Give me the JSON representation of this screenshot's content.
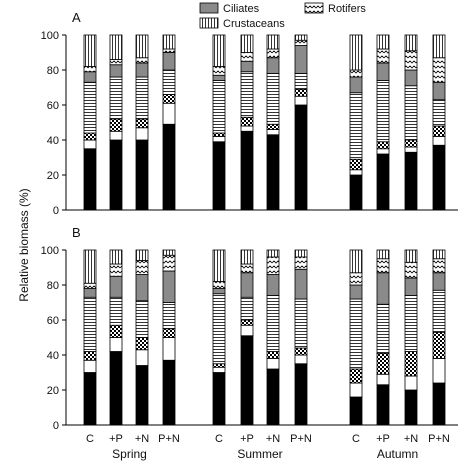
{
  "chart_data": {
    "type": "bar",
    "stacked": true,
    "ylabel": "Relative biomass (%)",
    "ylim": [
      0,
      100
    ],
    "yticks": [
      0,
      20,
      40,
      60,
      80,
      100
    ],
    "grid": false,
    "legend_position": "top-center",
    "legend": [
      {
        "name": "Ciliates",
        "pattern": "gray"
      },
      {
        "name": "Rotifers",
        "pattern": "wavy"
      },
      {
        "name": "Crustaceans",
        "pattern": "vertical"
      }
    ],
    "categories": [
      "C",
      "+P",
      "+N",
      "P+N"
    ],
    "groups": [
      "Spring",
      "Summer",
      "Autumn"
    ],
    "layer_order": [
      "black",
      "white",
      "dotted",
      "horizontal",
      "gray",
      "wavy",
      "vertical"
    ],
    "patterns": {
      "black": "#000000",
      "white": "#ffffff",
      "gray": "#8a8a8a"
    },
    "panels": [
      {
        "label": "A",
        "bars": [
          [
            35,
            5,
            4,
            29,
            6,
            3,
            18
          ],
          [
            40,
            5,
            7,
            24,
            7,
            3,
            14
          ],
          [
            40,
            7,
            5,
            24,
            8,
            3,
            13
          ],
          [
            49,
            12,
            5,
            14,
            10,
            2,
            8
          ],
          [
            39,
            3,
            2,
            30,
            3,
            5,
            18
          ],
          [
            45,
            3,
            5,
            26,
            6,
            5,
            10
          ],
          [
            43,
            3,
            3,
            29,
            9,
            5,
            8
          ],
          [
            60,
            5,
            4,
            9,
            16,
            3,
            3
          ],
          [
            20,
            3,
            6,
            38,
            9,
            4,
            20
          ],
          [
            32,
            3,
            4,
            35,
            10,
            8,
            8
          ],
          [
            33,
            3,
            4,
            31,
            9,
            11,
            9
          ],
          [
            37,
            5,
            6,
            15,
            10,
            14,
            13
          ]
        ]
      },
      {
        "label": "B",
        "bars": [
          [
            30,
            7,
            5,
            31,
            5,
            3,
            19
          ],
          [
            42,
            8,
            7,
            16,
            12,
            7,
            8
          ],
          [
            34,
            9,
            7,
            21,
            15,
            8,
            6
          ],
          [
            37,
            13,
            5,
            15,
            18,
            9,
            3
          ],
          [
            30,
            3,
            2,
            40,
            3,
            4,
            18
          ],
          [
            51,
            6,
            3,
            13,
            14,
            5,
            8
          ],
          [
            32,
            6,
            4,
            32,
            12,
            10,
            4
          ],
          [
            35,
            5,
            4,
            28,
            17,
            7,
            4
          ],
          [
            16,
            8,
            8,
            40,
            8,
            7,
            13
          ],
          [
            23,
            6,
            12,
            28,
            18,
            8,
            5
          ],
          [
            20,
            8,
            14,
            32,
            10,
            9,
            7
          ],
          [
            24,
            14,
            15,
            24,
            10,
            8,
            5
          ]
        ]
      }
    ]
  }
}
